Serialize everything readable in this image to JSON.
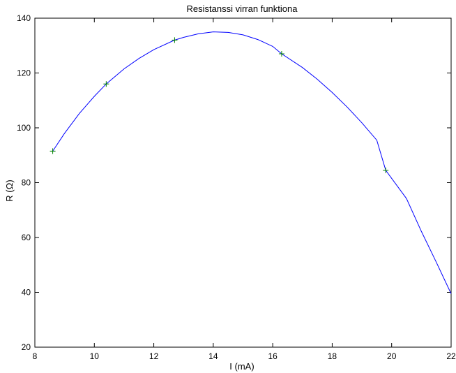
{
  "chart_data": {
    "type": "line",
    "title": "Resistanssi virran funktiona",
    "xlabel": "I (mA)",
    "ylabel": "R (Ω)",
    "xlim": [
      8,
      22
    ],
    "ylim": [
      20,
      140
    ],
    "x_ticks": [
      8,
      10,
      12,
      14,
      16,
      18,
      20,
      22
    ],
    "y_ticks": [
      20,
      40,
      60,
      80,
      100,
      120,
      140
    ],
    "grid": false,
    "series": [
      {
        "kind": "scatter-markers",
        "marker": "+",
        "color": "#008000",
        "x": [
          8.6,
          10.4,
          12.7,
          16.3,
          19.8
        ],
        "y": [
          91.5,
          116,
          132,
          127,
          84.5
        ]
      },
      {
        "kind": "fit-curve",
        "color": "#0000ff",
        "x": [
          8.6,
          9.0,
          9.5,
          10.0,
          10.4,
          11.0,
          11.5,
          12.0,
          12.7,
          13.0,
          13.5,
          14.0,
          14.5,
          15.0,
          15.5,
          16.0,
          16.3,
          17.0,
          17.5,
          18.0,
          18.5,
          19.0,
          19.5,
          19.8,
          20.5,
          21.0,
          21.5,
          22.0
        ],
        "y": [
          91.5,
          98.0,
          105.3,
          111.5,
          116.0,
          121.5,
          125.3,
          128.5,
          132.0,
          133.0,
          134.3,
          135.0,
          134.8,
          133.9,
          132.2,
          129.7,
          127.0,
          122.0,
          117.7,
          112.9,
          107.6,
          101.8,
          95.5,
          84.5,
          74.2,
          62.2,
          51.0,
          39.5
        ]
      }
    ]
  }
}
